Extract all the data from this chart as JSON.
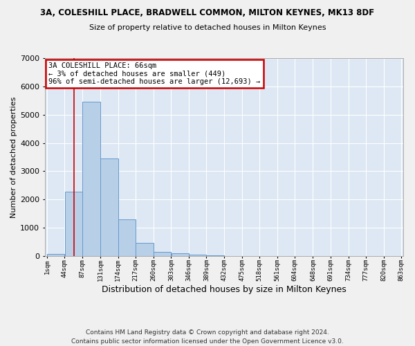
{
  "title1": "3A, COLESHILL PLACE, BRADWELL COMMON, MILTON KEYNES, MK13 8DF",
  "title2": "Size of property relative to detached houses in Milton Keynes",
  "xlabel": "Distribution of detached houses by size in Milton Keynes",
  "ylabel": "Number of detached properties",
  "footer_line1": "Contains HM Land Registry data © Crown copyright and database right 2024.",
  "footer_line2": "Contains public sector information licensed under the Open Government Licence v3.0.",
  "bin_edges": [
    1,
    44,
    87,
    131,
    174,
    217,
    260,
    303,
    346,
    389,
    432,
    475,
    518,
    561,
    604,
    648,
    691,
    734,
    777,
    820,
    863
  ],
  "bin_counts": [
    80,
    2270,
    5470,
    3440,
    1300,
    460,
    155,
    90,
    55,
    30,
    0,
    0,
    0,
    0,
    0,
    0,
    0,
    0,
    0,
    0
  ],
  "bar_color": "#b8cfe8",
  "bar_edge_color": "#6699cc",
  "vline_x": 66,
  "vline_color": "#cc0000",
  "annotation_line1": "3A COLESHILL PLACE: 66sqm",
  "annotation_line2": "← 3% of detached houses are smaller (449)",
  "annotation_line3": "96% of semi-detached houses are larger (12,693) →",
  "annotation_rect_color": "#cc0000",
  "ylim_max": 7000,
  "xlim_min": 1,
  "xlim_max": 863,
  "plot_bg": "#dde8f4",
  "fig_bg": "#f0f0f0",
  "grid_color": "#ffffff",
  "yticks": [
    0,
    1000,
    2000,
    3000,
    4000,
    5000,
    6000,
    7000
  ],
  "tick_labels": [
    "1sqm",
    "44sqm",
    "87sqm",
    "131sqm",
    "174sqm",
    "217sqm",
    "260sqm",
    "303sqm",
    "346sqm",
    "389sqm",
    "432sqm",
    "475sqm",
    "518sqm",
    "561sqm",
    "604sqm",
    "648sqm",
    "691sqm",
    "734sqm",
    "777sqm",
    "820sqm",
    "863sqm"
  ]
}
